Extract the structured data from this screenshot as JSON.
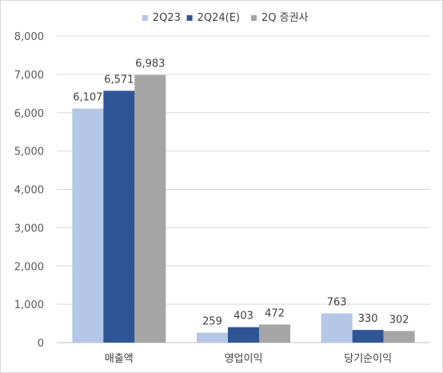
{
  "chart_data": {
    "type": "bar",
    "categories": [
      "매출액",
      "영업이익",
      "당기순이익"
    ],
    "series": [
      {
        "name": "2Q23",
        "color": "#b4c7e7",
        "values": [
          6107,
          259,
          763
        ]
      },
      {
        "name": "2Q24(E)",
        "color": "#2f5597",
        "values": [
          6571,
          403,
          330
        ]
      },
      {
        "name": "2Q 증권사",
        "color": "#a5a5a5",
        "values": [
          6983,
          472,
          302
        ]
      }
    ],
    "ylim": [
      0,
      8000
    ],
    "yticks": [
      0,
      1000,
      2000,
      3000,
      4000,
      5000,
      6000,
      7000,
      8000
    ],
    "ytick_labels": [
      "0",
      "1,000",
      "2,000",
      "3,000",
      "4,000",
      "5,000",
      "6,000",
      "7,000",
      "8,000"
    ],
    "data_labels": [
      [
        "6,107",
        "259",
        "763"
      ],
      [
        "6,571",
        "403",
        "330"
      ],
      [
        "6,983",
        "472",
        "302"
      ]
    ],
    "grid": true,
    "legend_position": "top-center",
    "gridline_color": "#d9d9d9",
    "axis_color": "#bfbfbf"
  }
}
